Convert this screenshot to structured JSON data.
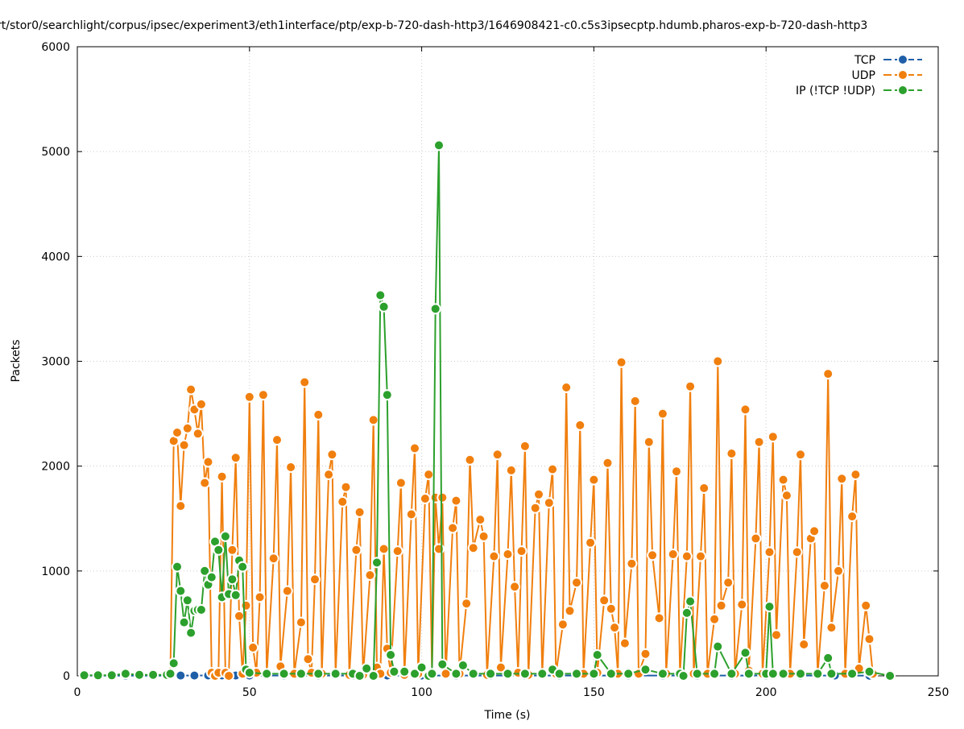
{
  "chart_data": {
    "type": "line",
    "title": "rt/stor0/searchlight/corpus/ipsec/experiment3/eth1interface/ptp/exp-b-720-dash-http3/1646908421-c0.c5s3ipsecptp.hdumb.pharos-exp-b-720-dash-http3",
    "xlabel": "Time (s)",
    "ylabel": "Packets",
    "xlim": [
      0,
      250
    ],
    "ylim": [
      0,
      6000
    ],
    "xticks": [
      0,
      50,
      100,
      150,
      200,
      250
    ],
    "yticks": [
      0,
      1000,
      2000,
      3000,
      4000,
      5000,
      6000
    ],
    "grid": true,
    "legend_position": "top-right",
    "series": [
      {
        "name": "TCP",
        "color": "#1f5fa8",
        "x": [
          2,
          6,
          10,
          14,
          18,
          22,
          26,
          30,
          34,
          38,
          42,
          46,
          50,
          60,
          70,
          80,
          90,
          100,
          110,
          120,
          130,
          140,
          150,
          160,
          170,
          180,
          190,
          200,
          210,
          220,
          230
        ],
        "values": [
          2,
          2,
          2,
          2,
          2,
          2,
          2,
          3,
          3,
          4,
          4,
          3,
          3,
          3,
          3,
          3,
          3,
          3,
          3,
          3,
          3,
          3,
          3,
          3,
          3,
          3,
          3,
          3,
          3,
          3,
          2
        ]
      },
      {
        "name": "UDP",
        "color": "#f07f0e",
        "x": [
          27,
          28,
          29,
          30,
          31,
          32,
          33,
          34,
          35,
          36,
          37,
          38,
          39,
          40,
          41,
          42,
          43,
          44,
          45,
          46,
          47,
          48,
          49,
          50,
          51,
          52,
          53,
          54,
          55,
          57,
          58,
          59,
          61,
          62,
          63,
          65,
          66,
          67,
          68,
          69,
          70,
          71,
          73,
          74,
          75,
          77,
          78,
          79,
          81,
          82,
          83,
          85,
          86,
          87,
          88,
          89,
          90,
          91,
          93,
          94,
          95,
          97,
          98,
          99,
          101,
          102,
          103,
          104,
          105,
          106,
          107,
          109,
          110,
          111,
          113,
          114,
          115,
          117,
          118,
          119,
          121,
          122,
          123,
          125,
          126,
          127,
          128,
          129,
          130,
          131,
          133,
          134,
          135,
          137,
          138,
          139,
          141,
          142,
          143,
          145,
          146,
          147,
          149,
          150,
          151,
          153,
          154,
          155,
          156,
          157,
          158,
          159,
          161,
          162,
          163,
          165,
          166,
          167,
          169,
          170,
          171,
          173,
          174,
          175,
          177,
          178,
          179,
          181,
          182,
          183,
          185,
          186,
          187,
          189,
          190,
          191,
          193,
          194,
          195,
          197,
          198,
          199,
          201,
          202,
          203,
          205,
          206,
          207,
          209,
          210,
          211,
          213,
          214,
          215,
          217,
          218,
          219,
          221,
          222,
          223,
          225,
          226,
          227,
          229,
          230,
          231
        ],
        "values": [
          10,
          2240,
          2320,
          1620,
          2200,
          2360,
          2730,
          2540,
          2310,
          2590,
          1840,
          2040,
          30,
          0,
          30,
          1900,
          30,
          0,
          1200,
          2080,
          570,
          20,
          670,
          2660,
          270,
          30,
          750,
          2680,
          20,
          1120,
          2250,
          90,
          810,
          1990,
          20,
          510,
          2800,
          160,
          30,
          920,
          2490,
          20,
          1920,
          2110,
          10,
          1660,
          1800,
          10,
          1200,
          1560,
          10,
          960,
          2440,
          80,
          20,
          1210,
          260,
          30,
          1190,
          1840,
          10,
          1540,
          2170,
          20,
          1690,
          1920,
          30,
          1700,
          1210,
          1700,
          20,
          1410,
          1670,
          20,
          690,
          2060,
          1220,
          1490,
          1330,
          10,
          1140,
          2110,
          80,
          1160,
          1960,
          850,
          30,
          1190,
          2190,
          10,
          1600,
          1730,
          10,
          1650,
          1970,
          20,
          490,
          2750,
          620,
          890,
          2390,
          20,
          1270,
          1870,
          30,
          720,
          2030,
          640,
          460,
          20,
          2990,
          310,
          1070,
          2620,
          20,
          210,
          2230,
          1150,
          550,
          2500,
          20,
          1160,
          1950,
          20,
          1140,
          2760,
          20,
          1140,
          1790,
          20,
          540,
          3000,
          670,
          890,
          2120,
          20,
          680,
          2540,
          50,
          1310,
          2230,
          20,
          1180,
          2280,
          390,
          1870,
          1720,
          20,
          1180,
          2110,
          300,
          1310,
          1380,
          20,
          860,
          2880,
          460,
          1000,
          1880,
          20,
          1520,
          1920,
          70,
          670,
          350,
          20
        ]
      },
      {
        "name": "IP (!TCP  !UDP)",
        "color": "#2ca02c",
        "x": [
          2,
          6,
          10,
          14,
          18,
          22,
          26,
          27,
          28,
          29,
          30,
          31,
          32,
          33,
          34,
          35,
          36,
          37,
          38,
          39,
          40,
          41,
          42,
          43,
          44,
          45,
          46,
          47,
          48,
          49,
          50,
          55,
          60,
          65,
          70,
          75,
          80,
          82,
          84,
          86,
          87,
          88,
          89,
          90,
          91,
          92,
          95,
          98,
          100,
          102,
          103,
          104,
          105,
          106,
          110,
          112,
          115,
          120,
          125,
          130,
          135,
          138,
          140,
          145,
          150,
          151,
          155,
          160,
          165,
          170,
          175,
          176,
          177,
          178,
          180,
          185,
          186,
          190,
          194,
          195,
          200,
          201,
          202,
          205,
          210,
          215,
          218,
          219,
          225,
          230,
          236
        ],
        "values": [
          5,
          5,
          5,
          20,
          10,
          10,
          10,
          20,
          120,
          1040,
          810,
          510,
          720,
          410,
          620,
          630,
          630,
          1000,
          870,
          940,
          1280,
          1200,
          750,
          1330,
          780,
          920,
          770,
          1100,
          1040,
          60,
          30,
          20,
          20,
          20,
          20,
          20,
          20,
          0,
          70,
          0,
          1080,
          3630,
          3520,
          2680,
          200,
          40,
          40,
          20,
          80,
          0,
          20,
          3500,
          5060,
          110,
          20,
          100,
          20,
          20,
          20,
          20,
          20,
          60,
          20,
          20,
          20,
          200,
          20,
          20,
          60,
          20,
          20,
          0,
          600,
          710,
          20,
          20,
          280,
          20,
          220,
          20,
          20,
          660,
          20,
          20,
          20,
          20,
          170,
          20,
          20,
          40,
          0
        ]
      }
    ]
  }
}
